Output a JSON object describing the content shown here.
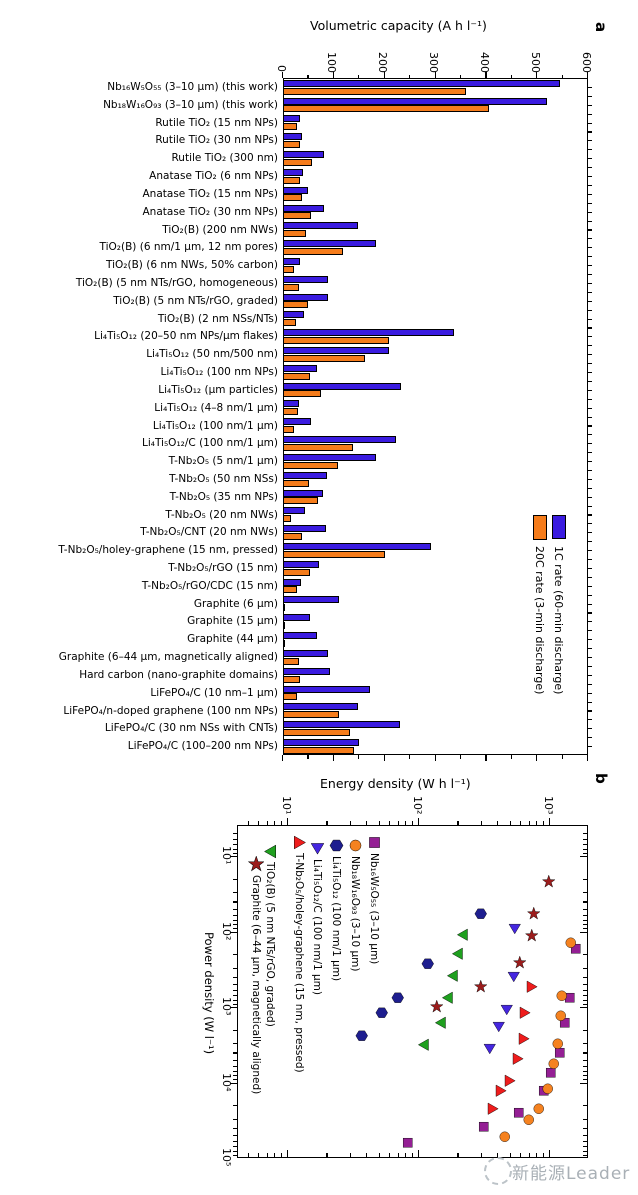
{
  "figure": {
    "panel_a_label": "a",
    "panel_b_label": "b",
    "watermark": "新能源Leader"
  },
  "chart_data": [
    {
      "id": "volumetric-capacity-comparison",
      "type": "bar",
      "title": "Volumetric capacity (A h l⁻¹)",
      "value_axis": {
        "min": 0,
        "max": 600,
        "tick_labels": [
          "0",
          "100",
          "200",
          "300",
          "400",
          "500",
          "600"
        ],
        "tick_values": [
          0,
          100,
          200,
          300,
          400,
          500,
          600
        ],
        "minor_step": 50
      },
      "series": [
        {
          "name": "1C rate (60-min discharge)",
          "color": "#3a1be0"
        },
        {
          "name": "20C rate (3-min discharge)",
          "color": "#f57c1b"
        }
      ],
      "categories": [
        "Nb₁₆W₅O₅₅ (3–10 μm) (this work)",
        "Nb₁₈W₁₆O₉₃ (3–10 μm) (this work)",
        "Rutile TiO₂ (15 nm NPs)",
        "Rutile TiO₂ (30 nm NPs)",
        "Rutile TiO₂ (300 nm)",
        "Anatase TiO₂ (6 nm NPs)",
        "Anatase TiO₂ (15 nm NPs)",
        "Anatase TiO₂ (30 nm NPs)",
        "TiO₂(B) (200 nm NWs)",
        "TiO₂(B) (6 nm/1 μm, 12 nm pores)",
        "TiO₂(B) (6 nm NWs, 50% carbon)",
        "TiO₂(B) (5 nm NTs/rGO, homogeneous)",
        "TiO₂(B) (5 nm NTs/rGO, graded)",
        "TiO₂(B) (2 nm NSs/NTs)",
        "Li₄Ti₅O₁₂ (20–50 nm NPs/μm flakes)",
        "Li₄Ti₅O₁₂ (50 nm/500 nm)",
        "Li₄Ti₅O₁₂ (100 nm NPs)",
        "Li₄Ti₅O₁₂ (μm particles)",
        "Li₄Ti₅O₁₂ (4–8 nm/1 μm)",
        "Li₄Ti₅O₁₂ (100 nm/1 μm)",
        "Li₄Ti₅O₁₂/C (100 nm/1 μm)",
        "T-Nb₂O₅ (5 nm/1 μm)",
        "T-Nb₂O₅ (50 nm NSs)",
        "T-Nb₂O₅ (35 nm NPs)",
        "T-Nb₂O₅ (20 nm NWs)",
        "T-Nb₂O₅/CNT (20 nm NWs)",
        "T-Nb₂O₅/holey-graphene (15 nm, pressed)",
        "T-Nb₂O₅/rGO (15 nm)",
        "T-Nb₂O₅/rGO/CDC (15 nm)",
        "Graphite (6 μm)",
        "Graphite (15 μm)",
        "Graphite (44 μm)",
        "Graphite (6–44 μm, magnetically aligned)",
        "Hard carbon (nano-graphite domains)",
        "LiFePO₄/C (10 nm–1 μm)",
        "LiFePO₄/n-doped graphene (100 nm NPs)",
        "LiFePO₄/C (30 nm NSs with CNTs)",
        "LiFePO₄/C (100–200 nm NPs)"
      ],
      "values_1c": [
        545,
        520,
        33,
        37,
        80,
        39,
        49,
        80,
        148,
        183,
        33,
        88,
        89,
        41,
        336,
        209,
        67,
        233,
        32,
        55,
        222,
        183,
        87,
        79,
        43,
        85,
        291,
        71,
        35,
        110,
        53,
        67,
        88,
        93,
        172,
        147,
        230,
        150
      ],
      "values_20c": [
        360,
        405,
        27,
        33,
        57,
        33,
        37,
        55,
        45,
        118,
        22,
        32,
        50,
        26,
        209,
        161,
        54,
        75,
        30,
        22,
        138,
        108,
        51,
        69,
        16,
        37,
        201,
        53,
        28,
        3,
        3,
        3,
        31,
        33,
        27,
        110,
        132,
        140
      ]
    },
    {
      "id": "ragone-plot",
      "type": "scatter",
      "xlabel": "Energy density (W h l⁻¹)",
      "ylabel": "Power density (W l⁻¹)",
      "x_tick_labels": [
        "10¹",
        "10²",
        "10³"
      ],
      "y_tick_labels": [
        "10¹",
        "10²",
        "10³",
        "10⁴",
        "10⁵"
      ],
      "x_range": [
        4.2,
        1950
      ],
      "y_range": [
        4,
        100000
      ],
      "x_scale": "log",
      "y_scale": "log",
      "series": [
        {
          "name": "Nb₁₆W₅O₅₅ (3–10 μm)",
          "symbol": "square",
          "color": "#941f94",
          "points": [
            [
              1600,
              170
            ],
            [
              1430,
              760
            ],
            [
              1330,
              1600
            ],
            [
              1200,
              4000
            ],
            [
              1040,
              7500
            ],
            [
              915,
              13000
            ],
            [
              590,
              25000
            ],
            [
              320,
              38000
            ],
            [
              84,
              62000
            ]
          ]
        },
        {
          "name": "Nb₁₈W₁₆O₉₃ (3–10 μm)",
          "symbol": "circle",
          "color": "#f58220",
          "points": [
            [
              1460,
              140
            ],
            [
              1250,
              710
            ],
            [
              1230,
              1300
            ],
            [
              1170,
              3100
            ],
            [
              1090,
              5700
            ],
            [
              980,
              12000
            ],
            [
              840,
              22000
            ],
            [
              700,
              31000
            ],
            [
              460,
              53000
            ]
          ]
        },
        {
          "name": "Li₄Ti₅O₁₂ (100 nm/1 μm)",
          "symbol": "hexagon",
          "color": "#1e1e8f",
          "points": [
            [
              300,
              59
            ],
            [
              118,
              270
            ],
            [
              70,
              760
            ],
            [
              53,
              1200
            ],
            [
              37,
              2400
            ]
          ]
        },
        {
          "name": "Li₄Ti₅O₁₂/C (100 nm/1 μm)",
          "symbol": "triangle-down",
          "color": "#4526e0",
          "points": [
            [
              545,
              93
            ],
            [
              535,
              400
            ],
            [
              480,
              1100
            ],
            [
              410,
              1800
            ],
            [
              350,
              3600
            ]
          ]
        },
        {
          "name": "T-Nb₂O₅/holey-graphene (15 nm, pressed)",
          "symbol": "triangle-right",
          "color": "#ee1c1c",
          "points": [
            [
              740,
              540
            ],
            [
              650,
              1200
            ],
            [
              640,
              2600
            ],
            [
              580,
              4900
            ],
            [
              500,
              9600
            ],
            [
              430,
              13000
            ],
            [
              370,
              22000
            ]
          ]
        },
        {
          "name": "TiO₂(B) (5 nm NTs/rGO, graded)",
          "symbol": "triangle-left",
          "color": "#1fa01f",
          "points": [
            [
              220,
              110
            ],
            [
              200,
              200
            ],
            [
              185,
              380
            ],
            [
              170,
              760
            ],
            [
              150,
              1600
            ],
            [
              110,
              3200
            ]
          ]
        },
        {
          "name": "Graphite (6–44 μm, magnetically aligned)",
          "symbol": "star",
          "color": "#9b1c1c",
          "points": [
            [
              1000,
              22
            ],
            [
              770,
              59
            ],
            [
              740,
              115
            ],
            [
              600,
              260
            ],
            [
              300,
              540
            ],
            [
              140,
              1000
            ]
          ]
        }
      ],
      "legend_order_left_to_right": [
        "Graphite (6–44 μm, magnetically aligned)",
        "TiO₂(B) (5 nm NTs/rGO, graded)",
        "T-Nb₂O₅/holey-graphene (15 nm, pressed)",
        "Li₄Ti₅O₁₂/C (100 nm/1 μm)",
        "Li₄Ti₅O₁₂ (100 nm/1 μm)",
        "Nb₁₈W₁₆O₉₃ (3–10 μm)",
        "Nb₁₆W₅O₅₅ (3–10 μm)"
      ]
    }
  ]
}
